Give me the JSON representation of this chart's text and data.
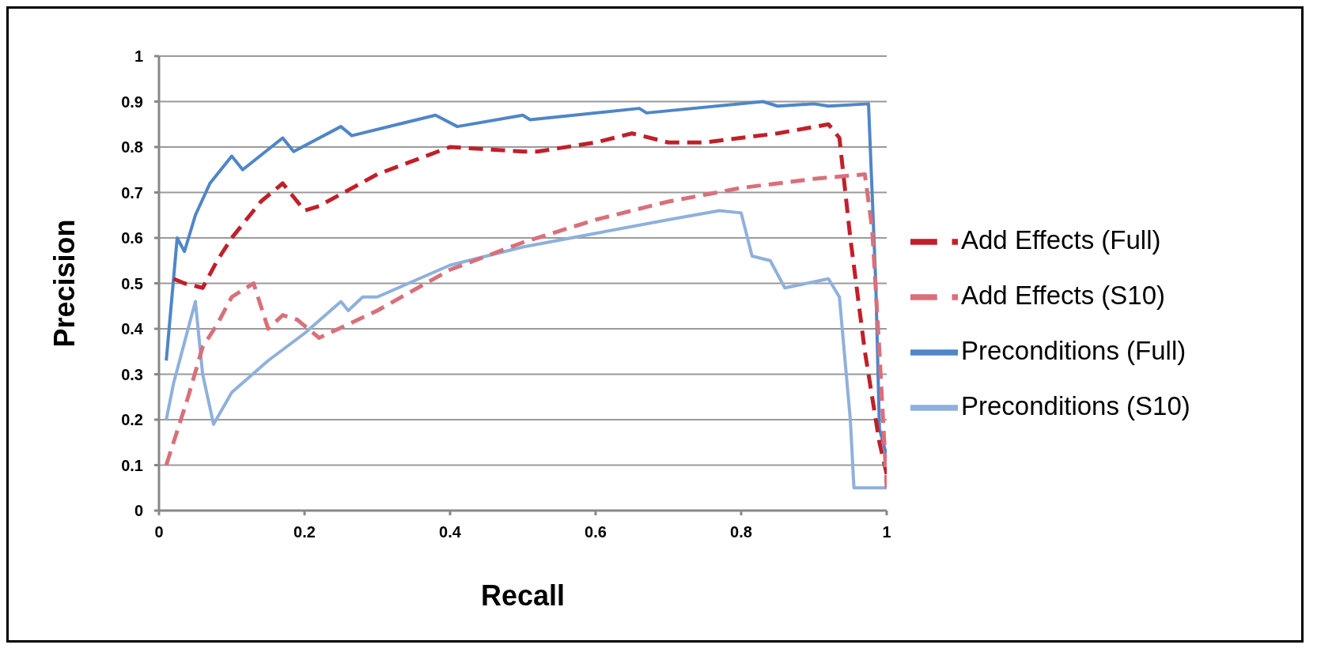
{
  "chart_data": {
    "type": "line",
    "xlabel": "Recall",
    "ylabel": "Precision",
    "xlim": [
      0,
      1
    ],
    "xticks": [
      0,
      0.2,
      0.4,
      0.6,
      0.8,
      1
    ],
    "ylim": [
      0,
      1
    ],
    "yticks": [
      0,
      0.1,
      0.2,
      0.3,
      0.4,
      0.5,
      0.6,
      0.7,
      0.8,
      0.9,
      1
    ],
    "grid": "y",
    "legend": "right",
    "marker": "none",
    "series": [
      {
        "name": "Preconditions (Full)",
        "color": "#4f86c6",
        "line_style": "solid",
        "x": [
          0.01,
          0.025,
          0.035,
          0.05,
          0.07,
          0.1,
          0.115,
          0.17,
          0.185,
          0.25,
          0.265,
          0.38,
          0.41,
          0.5,
          0.51,
          0.66,
          0.67,
          0.83,
          0.85,
          0.9,
          0.92,
          0.975,
          0.985,
          0.99,
          1.0
        ],
        "values": [
          0.33,
          0.6,
          0.57,
          0.65,
          0.72,
          0.78,
          0.75,
          0.82,
          0.79,
          0.845,
          0.825,
          0.87,
          0.845,
          0.87,
          0.86,
          0.885,
          0.875,
          0.9,
          0.89,
          0.895,
          0.89,
          0.895,
          0.5,
          0.18,
          0.12
        ]
      },
      {
        "name": "Preconditions (S10)",
        "color": "#8fb0dc",
        "line_style": "solid",
        "x": [
          0.01,
          0.02,
          0.04,
          0.05,
          0.06,
          0.075,
          0.1,
          0.15,
          0.2,
          0.25,
          0.26,
          0.28,
          0.3,
          0.4,
          0.5,
          0.6,
          0.7,
          0.77,
          0.8,
          0.815,
          0.84,
          0.86,
          0.92,
          0.935,
          0.95,
          0.955,
          1.0
        ],
        "values": [
          0.2,
          0.28,
          0.4,
          0.46,
          0.3,
          0.19,
          0.26,
          0.33,
          0.39,
          0.46,
          0.44,
          0.47,
          0.47,
          0.54,
          0.58,
          0.61,
          0.64,
          0.66,
          0.655,
          0.56,
          0.55,
          0.49,
          0.51,
          0.47,
          0.2,
          0.05,
          0.05
        ]
      },
      {
        "name": "Add Effects (Full)",
        "color": "#c0202a",
        "line_style": "dashed",
        "x": [
          0.02,
          0.035,
          0.06,
          0.08,
          0.1,
          0.14,
          0.17,
          0.2,
          0.22,
          0.3,
          0.4,
          0.5,
          0.52,
          0.6,
          0.65,
          0.7,
          0.75,
          0.85,
          0.92,
          0.935,
          0.95,
          0.97,
          0.99,
          1.0
        ],
        "values": [
          0.51,
          0.5,
          0.49,
          0.55,
          0.6,
          0.68,
          0.72,
          0.66,
          0.67,
          0.74,
          0.8,
          0.79,
          0.79,
          0.81,
          0.83,
          0.81,
          0.81,
          0.83,
          0.85,
          0.82,
          0.6,
          0.35,
          0.15,
          0.08
        ]
      },
      {
        "name": "Add Effects (S10)",
        "color": "#d8707a",
        "line_style": "dashed",
        "x": [
          0.01,
          0.04,
          0.06,
          0.08,
          0.1,
          0.13,
          0.15,
          0.17,
          0.19,
          0.22,
          0.3,
          0.4,
          0.5,
          0.6,
          0.7,
          0.8,
          0.9,
          0.97,
          0.98,
          0.99,
          1.0
        ],
        "values": [
          0.1,
          0.25,
          0.36,
          0.41,
          0.47,
          0.5,
          0.4,
          0.43,
          0.42,
          0.38,
          0.44,
          0.53,
          0.59,
          0.64,
          0.68,
          0.71,
          0.73,
          0.74,
          0.62,
          0.35,
          0.05
        ]
      }
    ]
  }
}
